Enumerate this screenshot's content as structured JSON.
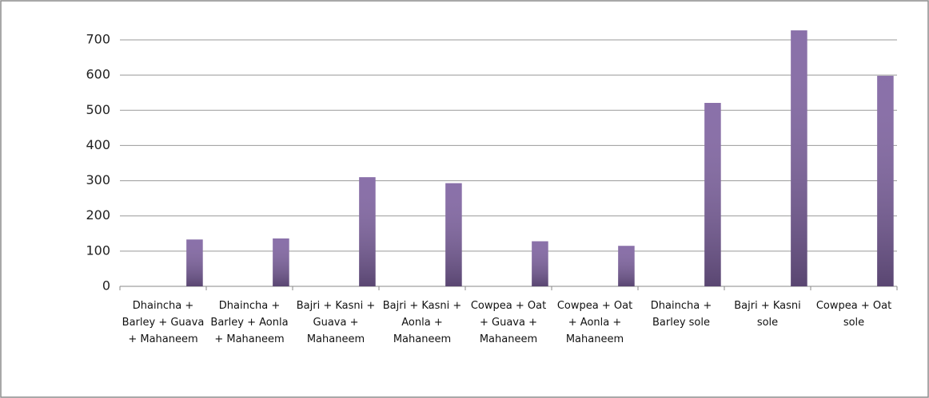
{
  "chart_data": {
    "type": "bar",
    "categories": [
      "Dhaincha + Barley + Guava + Mahaneem",
      "Dhaincha + Barley + Aonla + Mahaneem",
      "Bajri + Kasni + Guava + Mahaneem",
      "Bajri + Kasni + Aonla + Mahaneem",
      "Cowpea + Oat + Guava + Mahaneem",
      "Cowpea + Oat + Aonla + Mahaneem",
      "Dhaincha + Barley sole",
      "Bajri + Kasni sole",
      "Cowpea + Oat sole"
    ],
    "values": [
      133,
      136,
      310,
      293,
      128,
      115,
      521,
      727,
      598
    ],
    "color": "#8064a2",
    "ylim": [
      0,
      700
    ],
    "yticks": [
      0,
      100,
      200,
      300,
      400,
      500,
      600,
      700
    ],
    "grid": true
  }
}
